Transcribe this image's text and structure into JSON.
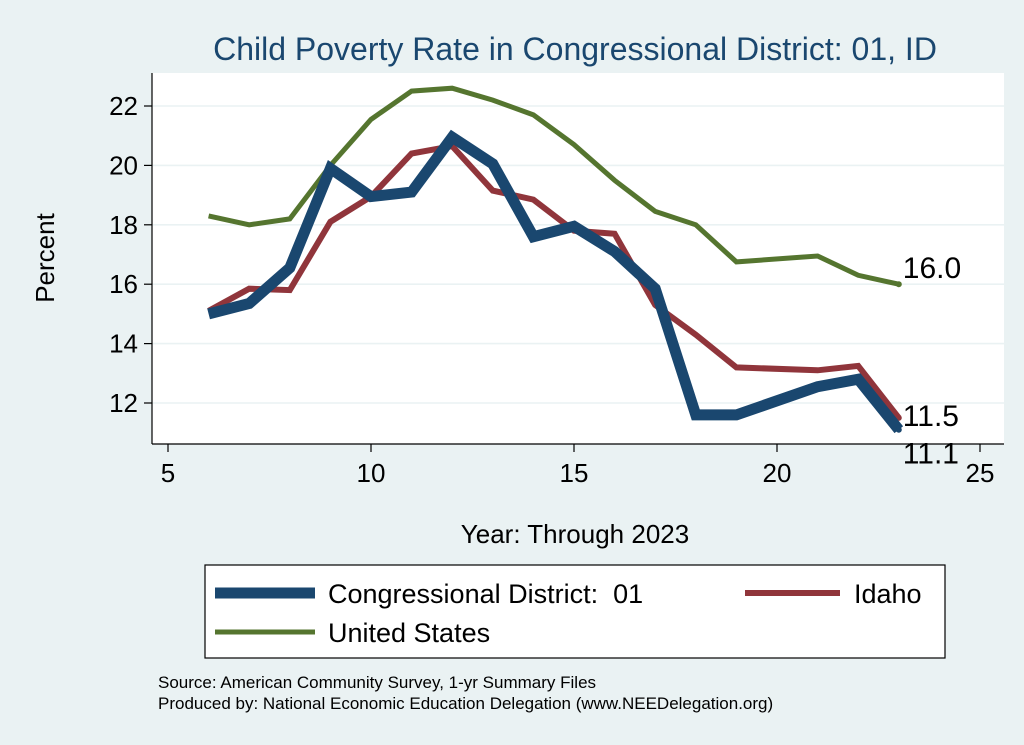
{
  "chart_data": {
    "type": "line",
    "title": "Child Poverty Rate in Congressional District:  01, ID",
    "xlabel": "Year: Through 2023",
    "ylabel": "Percent",
    "xlim": [
      5,
      25
    ],
    "ylim": [
      10.5,
      23.2
    ],
    "xticks": [
      5,
      10,
      15,
      20,
      25
    ],
    "yticks": [
      12,
      14,
      16,
      18,
      20,
      22
    ],
    "grid": true,
    "legend_position": "bottom",
    "series": [
      {
        "name": "Congressional District:  01",
        "color": "#1a476f",
        "x": [
          6,
          7,
          8,
          9,
          10,
          11,
          12,
          13,
          14,
          15,
          16,
          17,
          18,
          19,
          21,
          22,
          23
        ],
        "y": [
          15.0,
          15.35,
          16.55,
          19.9,
          18.95,
          19.1,
          20.95,
          20.05,
          17.6,
          17.95,
          17.1,
          15.85,
          11.6,
          11.6,
          12.55,
          12.8,
          11.1
        ]
      },
      {
        "name": "Idaho",
        "color": "#90353b",
        "x": [
          6,
          7,
          8,
          9,
          10,
          11,
          12,
          13,
          14,
          15,
          16,
          17,
          18,
          19,
          21,
          22,
          23
        ],
        "y": [
          15.1,
          15.85,
          15.8,
          18.1,
          18.95,
          20.4,
          20.65,
          19.15,
          18.85,
          17.8,
          17.7,
          15.3,
          14.3,
          13.2,
          13.1,
          13.25,
          11.5
        ]
      },
      {
        "name": "United States",
        "color": "#55752f",
        "x": [
          6,
          7,
          8,
          9,
          10,
          11,
          12,
          13,
          14,
          15,
          16,
          17,
          18,
          19,
          21,
          22,
          23
        ],
        "y": [
          18.3,
          18.0,
          18.2,
          20.0,
          21.55,
          22.5,
          22.6,
          22.2,
          21.7,
          20.7,
          19.5,
          18.45,
          18.0,
          16.75,
          16.95,
          16.3,
          16.0
        ]
      }
    ],
    "end_labels": [
      {
        "text": "16.0",
        "series": 2
      },
      {
        "text": "11.5",
        "series": 1
      },
      {
        "text": "11.1",
        "series": 0
      }
    ],
    "notes": [
      "Source: American Community Survey, 1-yr Summary Files",
      "Produced by: National Economic Education Delegation (www.NEEDelegation.org)"
    ]
  }
}
